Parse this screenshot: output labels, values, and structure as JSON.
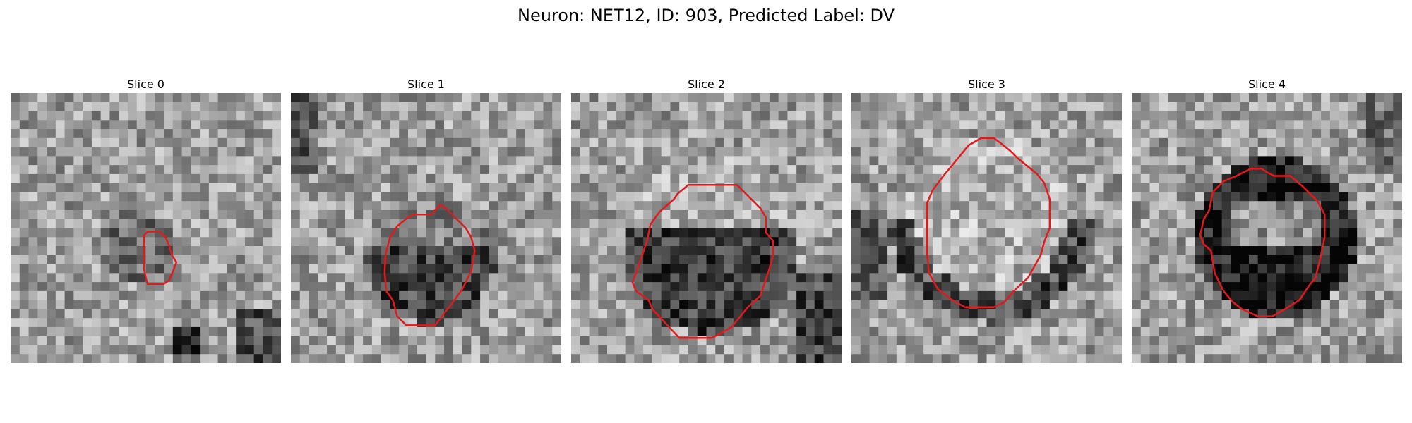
{
  "figure": {
    "title": "Neuron: NET12, ID: 903, Predicted Label: DV"
  },
  "panels": [
    {
      "title": "Slice 0"
    },
    {
      "title": "Slice 1"
    },
    {
      "title": "Slice 2"
    },
    {
      "title": "Slice 3"
    },
    {
      "title": "Slice 4"
    }
  ],
  "style": {
    "contour_color": "#e31a1c",
    "colormap": "grayscale"
  }
}
